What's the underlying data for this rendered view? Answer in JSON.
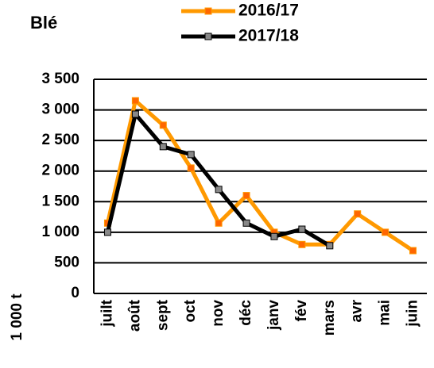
{
  "chart_data": {
    "type": "line",
    "title": "Blé",
    "y_label": "1 000 t",
    "categories": [
      "juilt",
      "août",
      "sept",
      "oct",
      "nov",
      "déc",
      "janv",
      "fév",
      "mars",
      "avr",
      "mai",
      "juin"
    ],
    "series": [
      {
        "name": "2016/17",
        "color": "#ff9900",
        "marker_color": "#ff6600",
        "values": [
          1150,
          3150,
          2750,
          2050,
          1150,
          1600,
          1000,
          800,
          800,
          1300,
          1000,
          700
        ]
      },
      {
        "name": "2017/18",
        "color": "#000000",
        "marker_color": "#888888",
        "values": [
          1000,
          2930,
          2400,
          2270,
          1700,
          1150,
          930,
          1050,
          780,
          null,
          null,
          null
        ]
      }
    ],
    "ylim": [
      0,
      3500
    ],
    "yticks": [
      0,
      500,
      {
        "value": 1000,
        "label": "1 000"
      },
      {
        "value": 1500,
        "label": "1 500"
      },
      {
        "value": 2000,
        "label": "2 000"
      },
      {
        "value": 2500,
        "label": "2 500"
      },
      {
        "value": 3000,
        "label": "3 000"
      },
      {
        "value": 3500,
        "label": "3 500"
      }
    ],
    "grid": true,
    "legend": "top"
  }
}
